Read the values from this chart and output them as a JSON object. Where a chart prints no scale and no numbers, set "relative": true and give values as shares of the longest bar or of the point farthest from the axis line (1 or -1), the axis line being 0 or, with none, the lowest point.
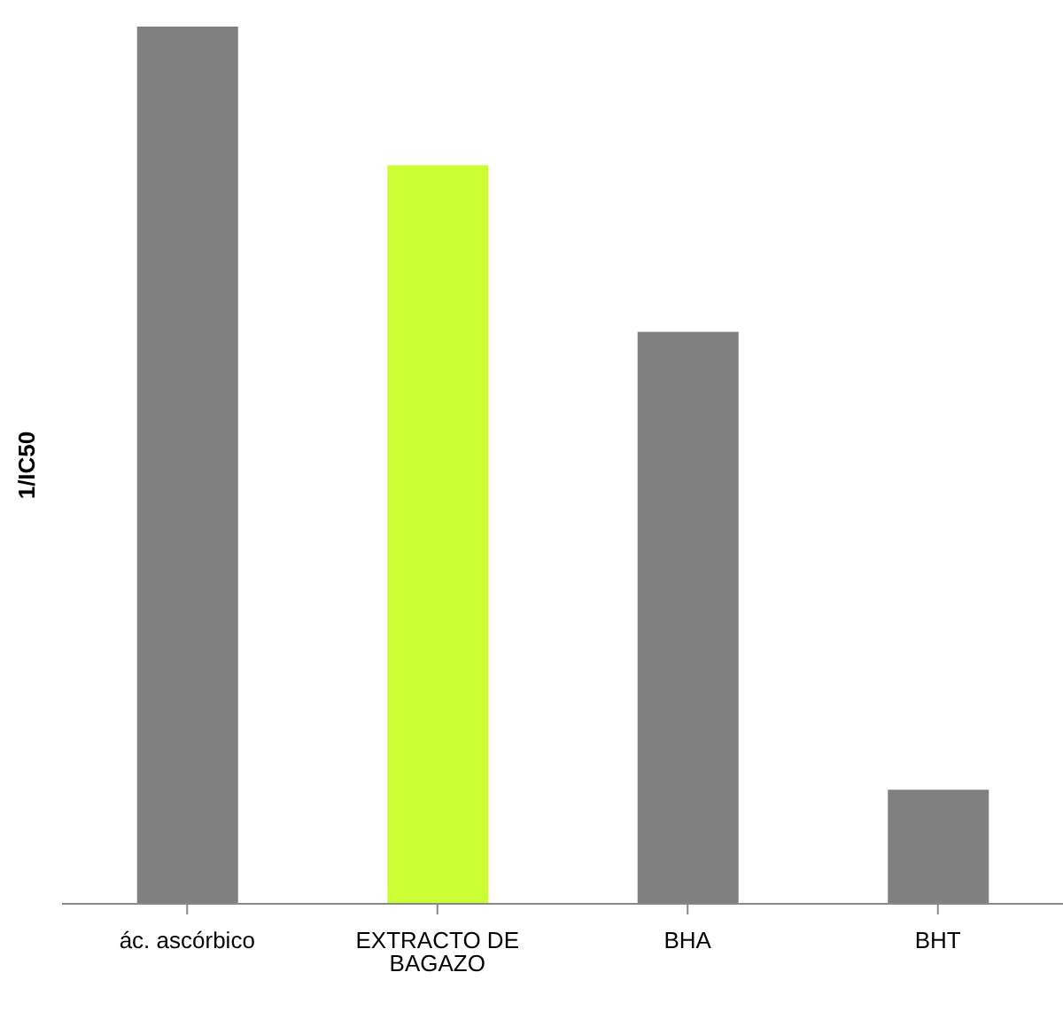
{
  "chart_data": {
    "type": "bar",
    "relative": true,
    "ylabel": "1/IC50",
    "categories": [
      "ác. ascórbico",
      "EXTRACTO DE BAGAZO",
      "BHA",
      "BHT"
    ],
    "values": [
      1,
      0.842,
      0.652,
      0.13
    ],
    "colors": [
      "#808080",
      "#ccff33",
      "#808080",
      "#808080"
    ],
    "grid": false,
    "legend": false
  }
}
